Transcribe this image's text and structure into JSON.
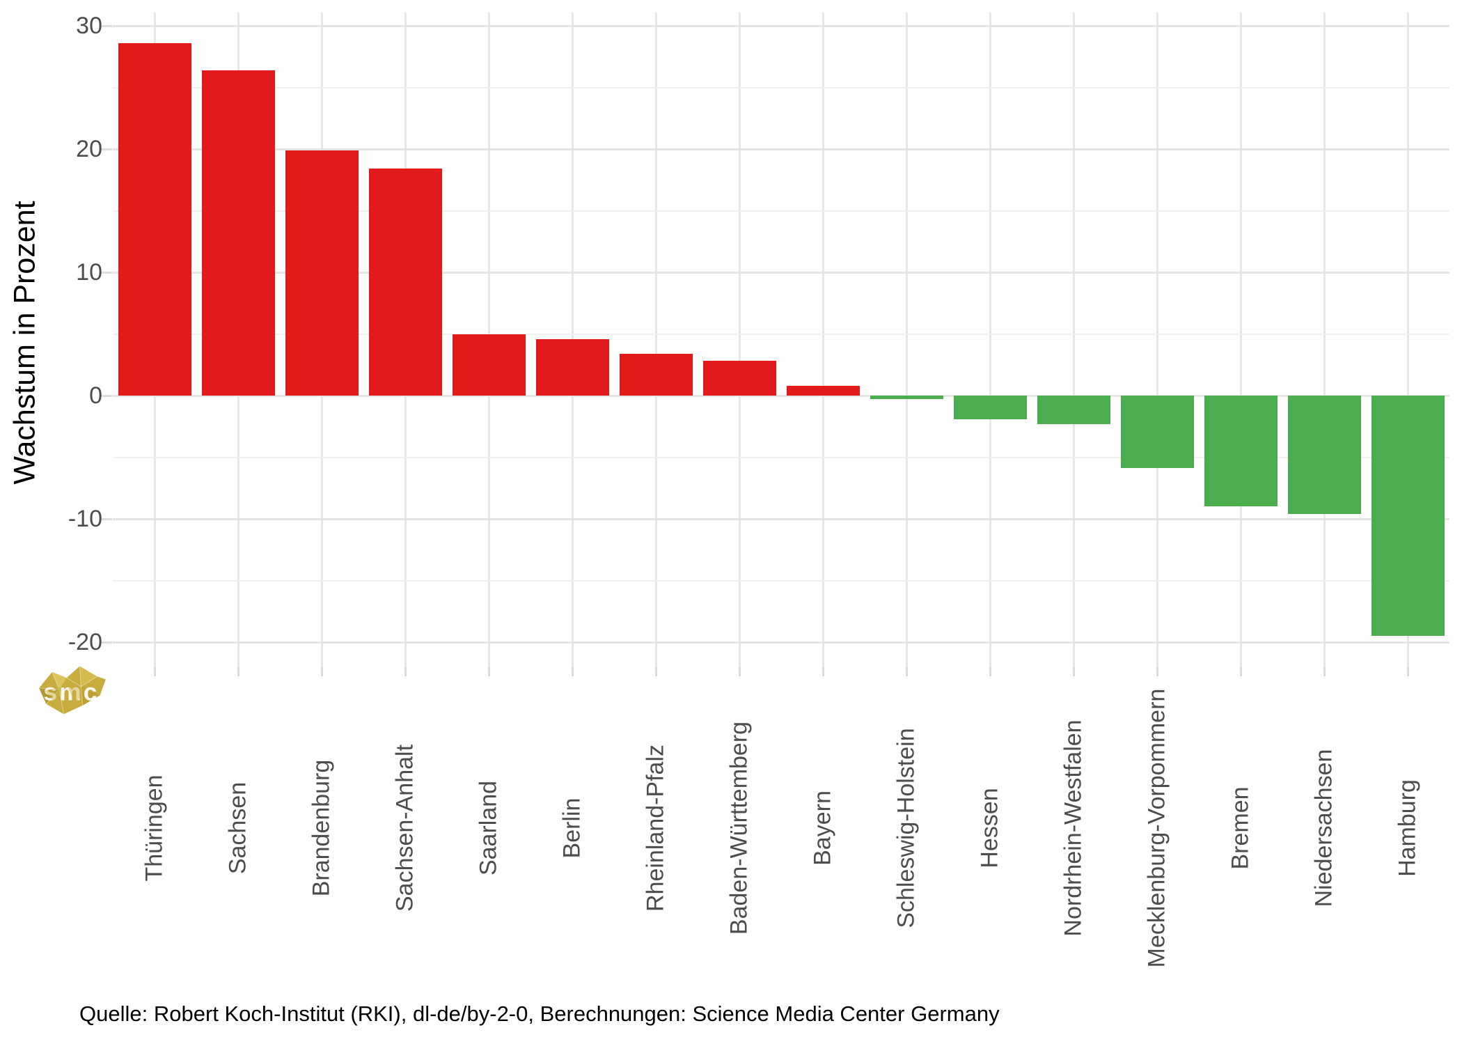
{
  "chart_data": {
    "type": "bar",
    "title": "",
    "xlabel": "",
    "ylabel": "Wachstum in Prozent",
    "categories": [
      "Thüringen",
      "Sachsen",
      "Brandenburg",
      "Sachsen-Anhalt",
      "Saarland",
      "Berlin",
      "Rheinland-Pfalz",
      "Baden-Württemberg",
      "Bayern",
      "Schleswig-Holstein",
      "Hessen",
      "Nordrhein-Westfalen",
      "Mecklenburg-Vorpommern",
      "Bremen",
      "Niedersachsen",
      "Hamburg"
    ],
    "values": [
      28.6,
      26.4,
      19.9,
      18.4,
      5.0,
      4.6,
      3.4,
      2.8,
      0.8,
      -0.3,
      -1.9,
      -2.3,
      -5.9,
      -9.0,
      -9.6,
      -19.5
    ],
    "positive_color": "#e21a1c",
    "negative_color": "#4cad4e",
    "yticks_major": [
      30,
      20,
      10,
      0,
      -10,
      -20
    ],
    "yticks_minor": [
      25,
      15,
      5,
      -5,
      -15
    ],
    "ylim": [
      -22,
      31
    ],
    "grid": "on",
    "legend": "none",
    "bar_orientation": "vertical",
    "x_label_rotation_deg": 90
  },
  "source_caption": "Quelle: Robert Koch-Institut (RKI), dl-de/by-2-0, Berechnungen: Science Media Center Germany",
  "watermark": {
    "text": "smc",
    "color": "#c8ad3e"
  }
}
